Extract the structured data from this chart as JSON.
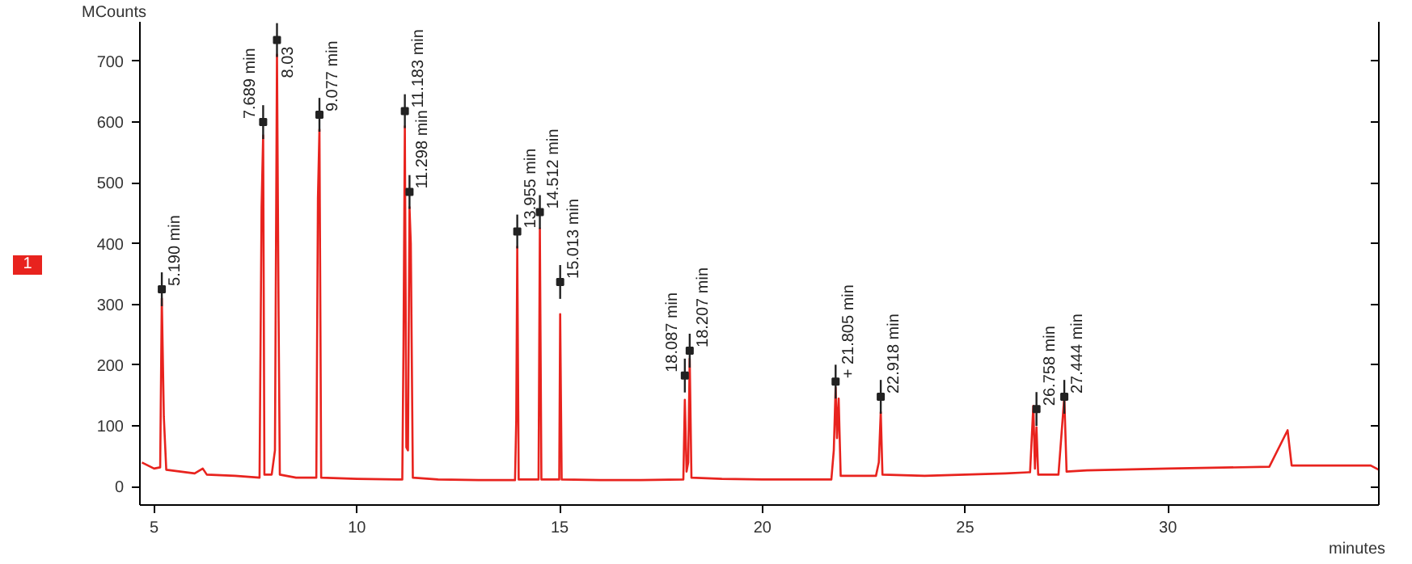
{
  "chart_data": {
    "type": "line",
    "xlabel": "minutes",
    "ylabel": "MCounts",
    "grid": false,
    "marker": "none",
    "line_style": "solid",
    "xlim": [
      4.65,
      35.2
    ],
    "ylim": [
      -30,
      765
    ],
    "xticks": [
      5,
      10,
      15,
      20,
      25,
      30
    ],
    "yticks": [
      0,
      100,
      200,
      300,
      400,
      500,
      600,
      700
    ],
    "series": [
      {
        "name": "1",
        "color": "#e8231e",
        "x": [
          4.7,
          5.0,
          5.15,
          5.19,
          5.24,
          5.3,
          6.0,
          6.2,
          6.3,
          7.0,
          7.6,
          7.65,
          7.689,
          7.72,
          7.9,
          7.98,
          8.03,
          8.07,
          8.1,
          8.5,
          9.0,
          9.04,
          9.077,
          9.12,
          10.0,
          11.0,
          11.12,
          11.15,
          11.183,
          11.22,
          11.26,
          11.298,
          11.33,
          11.38,
          12.0,
          13.0,
          13.9,
          13.93,
          13.955,
          13.99,
          14.48,
          14.512,
          14.55,
          14.99,
          15.013,
          15.05,
          16.0,
          17.0,
          18.05,
          18.087,
          18.13,
          18.17,
          18.207,
          18.25,
          19.0,
          20.0,
          21.0,
          21.7,
          21.76,
          21.805,
          21.84,
          21.88,
          21.93,
          22.8,
          22.87,
          22.918,
          22.96,
          24.0,
          25.0,
          26.0,
          26.6,
          26.68,
          26.72,
          26.758,
          26.8,
          27.3,
          27.444,
          27.5,
          28.0,
          30.0,
          32.5,
          32.95,
          33.05,
          34.0,
          35.0,
          35.2
        ],
        "values": [
          40,
          30,
          32,
          310,
          115,
          28,
          22,
          30,
          20,
          18,
          15,
          460,
          578,
          20,
          20,
          60,
          711,
          280,
          20,
          15,
          15,
          475,
          588,
          15,
          13,
          12,
          12,
          235,
          593,
          65,
          60,
          460,
          400,
          15,
          12,
          11,
          11,
          110,
          395,
          12,
          12,
          425,
          12,
          12,
          284,
          12,
          11,
          11,
          12,
          143,
          25,
          40,
          211,
          15,
          13,
          12,
          12,
          12,
          60,
          163,
          80,
          145,
          18,
          18,
          40,
          123,
          20,
          18,
          20,
          22,
          24,
          133,
          30,
          98,
          20,
          20,
          148,
          25,
          27,
          30,
          33,
          93,
          35,
          35,
          35,
          28
        ]
      }
    ],
    "annotations": [
      {
        "text": "5.190 min",
        "x": 5.19,
        "y": 325
      },
      {
        "text": "7.689 min",
        "x": 7.689,
        "y": 600
      },
      {
        "text": "8.03",
        "x": 8.03,
        "y": 735
      },
      {
        "text": "9.077 min",
        "x": 9.077,
        "y": 612
      },
      {
        "text": "11.183 min",
        "x": 11.183,
        "y": 618
      },
      {
        "text": "11.298 min",
        "x": 11.298,
        "y": 485
      },
      {
        "text": "13.955 min",
        "x": 13.955,
        "y": 420
      },
      {
        "text": "14.512 min",
        "x": 14.512,
        "y": 452
      },
      {
        "text": "15.013 min",
        "x": 15.013,
        "y": 337
      },
      {
        "text": "18.087 min",
        "x": 18.087,
        "y": 183
      },
      {
        "text": "18.207 min",
        "x": 18.207,
        "y": 224
      },
      {
        "text": "+ 21.805 min",
        "x": 21.805,
        "y": 173
      },
      {
        "text": "22.918 min",
        "x": 22.918,
        "y": 148
      },
      {
        "text": "26.758 min",
        "x": 26.758,
        "y": 128
      },
      {
        "text": "27.444 min",
        "x": 27.444,
        "y": 148
      }
    ]
  }
}
